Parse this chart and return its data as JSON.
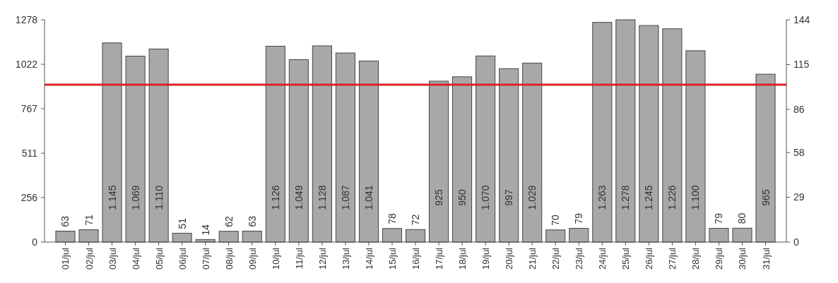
{
  "chart_data": {
    "type": "bar",
    "categories": [
      "01/jul",
      "02/jul",
      "03/jul",
      "04/jul",
      "05/jul",
      "06/jul",
      "07/jul",
      "08/jul",
      "09/jul",
      "10/jul",
      "11/jul",
      "12/jul",
      "13/jul",
      "14/jul",
      "15/jul",
      "16/jul",
      "17/jul",
      "18/jul",
      "19/jul",
      "20/jul",
      "21/jul",
      "22/jul",
      "23/jul",
      "24/jul",
      "25/jul",
      "26/jul",
      "27/jul",
      "28/jul",
      "29/jul",
      "30/jul",
      "31/jul"
    ],
    "values": [
      63,
      71,
      1145,
      1069,
      1110,
      51,
      14,
      62,
      63,
      1126,
      1049,
      1128,
      1087,
      1041,
      78,
      72,
      925,
      950,
      1070,
      997,
      1029,
      70,
      79,
      1263,
      1278,
      1245,
      1226,
      1100,
      79,
      80,
      965
    ],
    "value_labels": [
      "63",
      "71",
      "1.145",
      "1.069",
      "1.110",
      "51",
      "14",
      "62",
      "63",
      "1.126",
      "1.049",
      "1.128",
      "1.087",
      "1.041",
      "78",
      "72",
      "925",
      "950",
      "1.070",
      "997",
      "1.029",
      "70",
      "79",
      "1.263",
      "1.278",
      "1.245",
      "1.226",
      "1.100",
      "79",
      "80",
      "965"
    ],
    "color": "#a8a8a8",
    "ylim": [
      0,
      1278
    ],
    "yticks": [
      0,
      256,
      511,
      767,
      1022,
      1278
    ],
    "y2lim": [
      0,
      144
    ],
    "y2ticks": [
      0,
      29,
      58,
      86,
      115,
      144
    ],
    "ref_lines": [
      {
        "axis": "y",
        "value": 905,
        "color": "#e02020"
      }
    ],
    "grid": false
  }
}
